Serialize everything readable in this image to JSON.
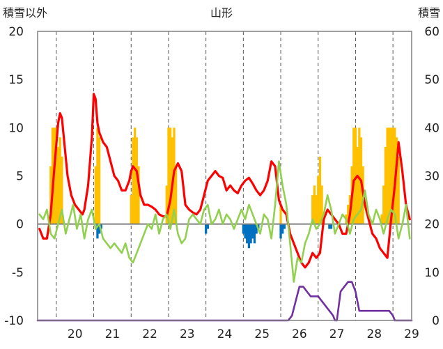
{
  "chart_data": {
    "type": "bar",
    "title": "山形",
    "left_axis_label": "積雪以外",
    "right_axis_label": "積雪",
    "categories": [
      "20",
      "21",
      "22",
      "23",
      "24",
      "25",
      "26",
      "27",
      "28",
      "29"
    ],
    "left_axis": {
      "min": -10,
      "max": 20,
      "ticks": [
        "20",
        "15",
        "10",
        "5",
        "0",
        "-5",
        "-10"
      ]
    },
    "right_axis": {
      "min": 0,
      "max": 60,
      "ticks": [
        "60",
        "50",
        "40",
        "30",
        "20",
        "10",
        "0"
      ]
    },
    "grid": {
      "vertical_dashed": true,
      "horizontal": false
    },
    "colors": {
      "temperature": "#ff0000",
      "sunshine": "#ffc000",
      "precipitation": "#0070c0",
      "wind": "#92d050",
      "snow_depth": "#7030a0",
      "zero_line": "#808080",
      "frame": "#808080"
    },
    "bar_series": [
      {
        "key": "sunshine",
        "color": "#ffc000",
        "x": [
          19.85,
          19.9,
          19.95,
          20.0,
          20.05,
          20.1,
          20.15,
          21.05,
          21.1,
          21.15,
          22.0,
          22.05,
          22.1,
          22.15,
          22.2,
          22.95,
          23.0,
          23.05,
          23.1,
          23.15,
          23.2,
          26.0,
          26.85,
          26.9,
          26.95,
          27.0,
          27.05,
          27.1,
          27.15,
          27.75,
          27.8,
          27.85,
          27.9,
          27.95,
          28.0,
          28.05,
          28.1,
          28.15,
          28.2,
          28.7,
          28.75,
          28.8,
          28.85,
          28.9,
          28.95,
          29.0,
          29.05,
          29.1,
          29.15
        ],
        "y": [
          6,
          10,
          10,
          10,
          8,
          9,
          7,
          6,
          10,
          9,
          3,
          9,
          10,
          9,
          6,
          4,
          10,
          10,
          9,
          10,
          6,
          2,
          3,
          4,
          3,
          5,
          7,
          4,
          1,
          1,
          2,
          3,
          6,
          10,
          10,
          8,
          10,
          9,
          6,
          1,
          4,
          8,
          10,
          10,
          10,
          10,
          10,
          9,
          7
        ]
      },
      {
        "key": "precipitation",
        "color": "#0070c0",
        "x": [
          21.1,
          21.15,
          21.2,
          24.0,
          24.05,
          25.0,
          25.05,
          25.1,
          25.15,
          25.2,
          25.25,
          25.3,
          25.35,
          25.4,
          26.0,
          26.05,
          26.1,
          27.3,
          27.35
        ],
        "y": [
          -1.5,
          -1,
          -0.5,
          -1,
          -0.5,
          -1,
          -1.5,
          -2,
          -2.5,
          -2,
          -1.5,
          -2,
          -1,
          -0.5,
          -1.5,
          -1,
          -0.5,
          -0.5,
          -0.5
        ]
      }
    ],
    "line_series": [
      {
        "key": "temperature",
        "color": "#ff0000",
        "axis": "left",
        "x": [
          19.55,
          19.65,
          19.75,
          19.85,
          19.95,
          20.05,
          20.1,
          20.15,
          20.2,
          20.3,
          20.4,
          20.5,
          20.6,
          20.7,
          20.75,
          20.85,
          20.95,
          21.0,
          21.05,
          21.1,
          21.15,
          21.25,
          21.35,
          21.45,
          21.55,
          21.65,
          21.75,
          21.85,
          21.95,
          22.0,
          22.05,
          22.15,
          22.25,
          22.35,
          22.45,
          22.55,
          22.65,
          22.75,
          22.85,
          22.95,
          23.05,
          23.15,
          23.25,
          23.35,
          23.45,
          23.55,
          23.65,
          23.75,
          23.85,
          23.95,
          24.05,
          24.15,
          24.25,
          24.35,
          24.45,
          24.55,
          24.65,
          24.75,
          24.85,
          24.95,
          25.05,
          25.15,
          25.25,
          25.35,
          25.45,
          25.55,
          25.65,
          25.75,
          25.85,
          25.95,
          26.05,
          26.15,
          26.25,
          26.35,
          26.45,
          26.55,
          26.65,
          26.75,
          26.85,
          26.95,
          27.05,
          27.15,
          27.25,
          27.35,
          27.45,
          27.55,
          27.65,
          27.75,
          27.85,
          27.95,
          28.05,
          28.15,
          28.25,
          28.35,
          28.45,
          28.55,
          28.65,
          28.75,
          28.85,
          28.95,
          29.05,
          29.15,
          29.25,
          29.35,
          29.45
        ],
        "y": [
          -0.5,
          -1.5,
          -1.5,
          1,
          6,
          10.5,
          11.5,
          11,
          9,
          5,
          3,
          2,
          1.5,
          1,
          1.5,
          4,
          9,
          13.5,
          13,
          10.5,
          9.5,
          8.5,
          8,
          6.5,
          5,
          4.5,
          3.5,
          3.5,
          4.5,
          5.5,
          6,
          5.5,
          3,
          2,
          2,
          1.8,
          1.5,
          1,
          0.8,
          0.8,
          2.5,
          5.5,
          6.3,
          5.5,
          2,
          1.5,
          1.2,
          1,
          1.5,
          3,
          4.5,
          5,
          5.5,
          5,
          4.8,
          3.5,
          4,
          3.5,
          3.2,
          4,
          4.5,
          4.8,
          4.2,
          3.5,
          3,
          3.5,
          4.5,
          6.5,
          6,
          2.5,
          1.5,
          1,
          -1,
          -2,
          -3,
          -4,
          -4.5,
          -4,
          -3,
          -3.5,
          -3,
          0.5,
          1.5,
          1,
          0.5,
          0,
          -1,
          -1,
          1,
          4.5,
          5,
          4.5,
          2,
          0.5,
          -1,
          -1.5,
          -2.5,
          -3,
          -3.5,
          0.5,
          4,
          8.5,
          5.5,
          2,
          0.5
        ]
      },
      {
        "key": "wind",
        "color": "#92d050",
        "axis": "left",
        "x": [
          19.55,
          19.65,
          19.75,
          19.85,
          19.95,
          20.05,
          20.15,
          20.25,
          20.35,
          20.45,
          20.55,
          20.65,
          20.75,
          20.85,
          20.95,
          21.05,
          21.15,
          21.25,
          21.35,
          21.45,
          21.55,
          21.65,
          21.75,
          21.85,
          21.95,
          22.05,
          22.15,
          22.25,
          22.35,
          22.45,
          22.55,
          22.65,
          22.75,
          22.85,
          22.95,
          23.05,
          23.15,
          23.25,
          23.35,
          23.45,
          23.55,
          23.65,
          23.75,
          23.85,
          23.95,
          24.05,
          24.15,
          24.25,
          24.35,
          24.45,
          24.55,
          24.65,
          24.75,
          24.85,
          24.95,
          25.05,
          25.15,
          25.25,
          25.35,
          25.45,
          25.55,
          25.65,
          25.75,
          25.85,
          25.95,
          26.05,
          26.15,
          26.25,
          26.35,
          26.45,
          26.55,
          26.65,
          26.75,
          26.85,
          26.95,
          27.05,
          27.15,
          27.25,
          27.35,
          27.45,
          27.55,
          27.65,
          27.75,
          27.85,
          27.95,
          28.05,
          28.15,
          28.25,
          28.35,
          28.45,
          28.55,
          28.65,
          28.75,
          28.85,
          28.95,
          29.05,
          29.15,
          29.25,
          29.35,
          29.45
        ],
        "y": [
          1,
          0.5,
          1.5,
          -1,
          -1.5,
          0,
          1.5,
          -1,
          0.5,
          2,
          -0.5,
          1,
          -1.5,
          0.5,
          1.5,
          -0.5,
          0,
          -1.5,
          -2,
          -2.5,
          -2,
          -2.5,
          -3,
          -2,
          -3.5,
          -4,
          -3,
          -2,
          -1,
          0,
          -0.5,
          1,
          -1,
          0.5,
          1,
          -0.5,
          1.5,
          -1,
          -2,
          -1.5,
          0.5,
          1,
          0.5,
          0,
          1.5,
          2,
          0,
          0.5,
          1.5,
          0,
          1,
          0.5,
          -0.5,
          0.5,
          1.5,
          0.5,
          2,
          1,
          0,
          -1,
          1,
          0.5,
          -1.5,
          2,
          6.5,
          4,
          2,
          -2,
          -6,
          -3.5,
          -4,
          -2,
          -1,
          0.5,
          -0.5,
          0,
          1,
          3,
          1.5,
          -1,
          0,
          1,
          0.5,
          -1,
          0.5,
          1,
          1.5,
          3.5,
          1,
          0,
          1.5,
          0.5,
          -1,
          0.5,
          1.5,
          1,
          -1.5,
          0,
          2,
          -1.5
        ]
      },
      {
        "key": "snow_depth",
        "color": "#7030a0",
        "axis": "right",
        "x": [
          19.5,
          26.2,
          26.3,
          26.4,
          26.5,
          26.6,
          26.7,
          26.8,
          26.9,
          27.0,
          27.1,
          27.2,
          27.3,
          27.4,
          27.45,
          27.5,
          27.6,
          27.7,
          27.8,
          27.9,
          28.0,
          28.05,
          28.1,
          28.2,
          28.3,
          28.9,
          29.0,
          29.05,
          29.1,
          29.5
        ],
        "y": [
          0,
          0,
          1,
          4,
          7,
          7,
          6,
          5,
          5,
          5,
          4,
          3,
          2,
          1,
          0,
          0,
          6,
          7,
          8,
          8,
          6,
          4,
          2,
          2,
          2,
          2,
          1,
          0,
          0,
          0
        ]
      }
    ]
  }
}
